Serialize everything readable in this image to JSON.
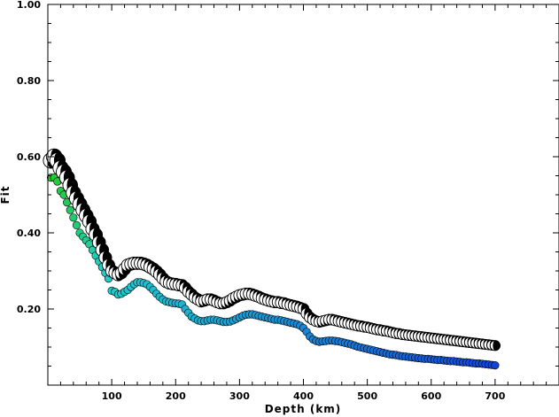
{
  "chart_data": {
    "type": "scatter",
    "title": "",
    "xlabel": "Depth (km)",
    "ylabel": "Fit",
    "xlim": [
      0,
      800
    ],
    "ylim": [
      0,
      1.0
    ],
    "x_ticks": [
      100,
      200,
      300,
      400,
      500,
      600,
      700
    ],
    "x_tick_labels": [
      "100",
      "200",
      "300",
      "400",
      "500",
      "600",
      "700"
    ],
    "y_ticks": [
      0.2,
      0.4,
      0.6,
      0.8,
      1.0
    ],
    "y_tick_labels": [
      "0.20",
      "0.40",
      "0.60",
      "0.80",
      "1.00"
    ],
    "grid": false,
    "legend": "none",
    "colors": {
      "mechanism_compression": "#000000",
      "mechanism_dilatation": "#ffffff",
      "dot_shallow": "#22cc22",
      "dot_mid": "#22cccc",
      "dot_deep": "#1144dd"
    },
    "series": [
      {
        "marker": "focal-mechanism",
        "x": [
          5,
          10,
          15,
          20,
          25,
          30,
          35,
          40,
          45,
          50,
          55,
          60,
          65,
          70,
          75,
          80,
          85,
          90,
          95,
          100,
          105,
          110,
          115,
          120,
          125,
          130,
          135,
          140,
          145,
          150,
          155,
          160,
          165,
          170,
          175,
          180,
          185,
          190,
          195,
          200,
          205,
          210,
          215,
          220,
          225,
          230,
          235,
          240,
          245,
          250,
          255,
          260,
          265,
          270,
          275,
          280,
          285,
          290,
          295,
          300,
          305,
          310,
          315,
          320,
          325,
          330,
          335,
          340,
          345,
          350,
          355,
          360,
          365,
          370,
          375,
          380,
          385,
          390,
          395,
          400,
          405,
          410,
          415,
          420,
          425,
          430,
          435,
          440,
          445,
          450,
          455,
          460,
          465,
          470,
          475,
          480,
          485,
          490,
          495,
          500,
          505,
          510,
          515,
          520,
          525,
          530,
          535,
          540,
          545,
          550,
          555,
          560,
          565,
          570,
          575,
          580,
          585,
          590,
          595,
          600,
          605,
          610,
          615,
          620,
          625,
          630,
          635,
          640,
          645,
          650,
          655,
          660,
          665,
          670,
          675,
          680,
          685,
          690,
          695,
          700
        ],
        "y": [
          0.59,
          0.6,
          0.59,
          0.57,
          0.56,
          0.545,
          0.525,
          0.505,
          0.49,
          0.475,
          0.46,
          0.445,
          0.43,
          0.41,
          0.395,
          0.375,
          0.355,
          0.335,
          0.315,
          0.3,
          0.295,
          0.29,
          0.295,
          0.305,
          0.315,
          0.318,
          0.32,
          0.32,
          0.32,
          0.318,
          0.315,
          0.31,
          0.305,
          0.298,
          0.29,
          0.28,
          0.272,
          0.268,
          0.266,
          0.265,
          0.263,
          0.262,
          0.255,
          0.245,
          0.238,
          0.23,
          0.225,
          0.22,
          0.222,
          0.225,
          0.225,
          0.222,
          0.218,
          0.215,
          0.215,
          0.218,
          0.222,
          0.228,
          0.232,
          0.236,
          0.238,
          0.24,
          0.24,
          0.238,
          0.235,
          0.232,
          0.228,
          0.225,
          0.222,
          0.22,
          0.218,
          0.218,
          0.216,
          0.215,
          0.212,
          0.21,
          0.208,
          0.206,
          0.203,
          0.2,
          0.188,
          0.178,
          0.172,
          0.168,
          0.166,
          0.168,
          0.17,
          0.172,
          0.172,
          0.17,
          0.168,
          0.166,
          0.164,
          0.162,
          0.16,
          0.158,
          0.156,
          0.155,
          0.153,
          0.152,
          0.15,
          0.148,
          0.146,
          0.145,
          0.143,
          0.142,
          0.14,
          0.138,
          0.136,
          0.135,
          0.133,
          0.132,
          0.131,
          0.13,
          0.129,
          0.128,
          0.127,
          0.126,
          0.125,
          0.124,
          0.123,
          0.122,
          0.121,
          0.12,
          0.119,
          0.118,
          0.117,
          0.116,
          0.115,
          0.114,
          0.113,
          0.112,
          0.111,
          0.11,
          0.109,
          0.108,
          0.107,
          0.106,
          0.105,
          0.104
        ]
      },
      {
        "marker": "dot",
        "x": [
          5,
          10,
          15,
          20,
          25,
          30,
          35,
          40,
          45,
          50,
          55,
          60,
          65,
          70,
          75,
          80,
          85,
          90,
          95,
          100,
          105,
          110,
          115,
          120,
          125,
          130,
          135,
          140,
          145,
          150,
          155,
          160,
          165,
          170,
          175,
          180,
          185,
          190,
          195,
          200,
          205,
          210,
          215,
          220,
          225,
          230,
          235,
          240,
          245,
          250,
          255,
          260,
          265,
          270,
          275,
          280,
          285,
          290,
          295,
          300,
          305,
          310,
          315,
          320,
          325,
          330,
          335,
          340,
          345,
          350,
          355,
          360,
          365,
          370,
          375,
          380,
          385,
          390,
          395,
          400,
          405,
          410,
          415,
          420,
          425,
          430,
          435,
          440,
          445,
          450,
          455,
          460,
          465,
          470,
          475,
          480,
          485,
          490,
          495,
          500,
          505,
          510,
          515,
          520,
          525,
          530,
          535,
          540,
          545,
          550,
          555,
          560,
          565,
          570,
          575,
          580,
          585,
          590,
          595,
          600,
          605,
          610,
          615,
          620,
          625,
          630,
          635,
          640,
          645,
          650,
          655,
          660,
          665,
          670,
          675,
          680,
          685,
          690,
          695,
          700
        ],
        "y": [
          0.545,
          0.545,
          0.535,
          0.51,
          0.5,
          0.48,
          0.46,
          0.44,
          0.42,
          0.4,
          0.39,
          0.38,
          0.37,
          0.355,
          0.34,
          0.325,
          0.31,
          0.295,
          0.28,
          0.248,
          0.245,
          0.238,
          0.24,
          0.245,
          0.25,
          0.258,
          0.265,
          0.27,
          0.27,
          0.268,
          0.265,
          0.258,
          0.25,
          0.24,
          0.232,
          0.225,
          0.22,
          0.218,
          0.216,
          0.215,
          0.214,
          0.212,
          0.2,
          0.19,
          0.18,
          0.175,
          0.17,
          0.168,
          0.168,
          0.17,
          0.172,
          0.172,
          0.17,
          0.168,
          0.166,
          0.166,
          0.167,
          0.17,
          0.174,
          0.178,
          0.182,
          0.185,
          0.186,
          0.186,
          0.184,
          0.182,
          0.18,
          0.178,
          0.176,
          0.174,
          0.172,
          0.172,
          0.17,
          0.168,
          0.166,
          0.164,
          0.162,
          0.16,
          0.156,
          0.15,
          0.14,
          0.128,
          0.12,
          0.116,
          0.114,
          0.115,
          0.116,
          0.117,
          0.117,
          0.116,
          0.115,
          0.113,
          0.111,
          0.109,
          0.107,
          0.104,
          0.101,
          0.099,
          0.097,
          0.095,
          0.093,
          0.091,
          0.089,
          0.087,
          0.085,
          0.083,
          0.081,
          0.08,
          0.079,
          0.077,
          0.076,
          0.075,
          0.074,
          0.073,
          0.072,
          0.071,
          0.07,
          0.069,
          0.069,
          0.068,
          0.067,
          0.066,
          0.066,
          0.065,
          0.064,
          0.063,
          0.063,
          0.062,
          0.061,
          0.06,
          0.06,
          0.059,
          0.058,
          0.057,
          0.057,
          0.056,
          0.055,
          0.054,
          0.053,
          0.052
        ]
      }
    ]
  }
}
